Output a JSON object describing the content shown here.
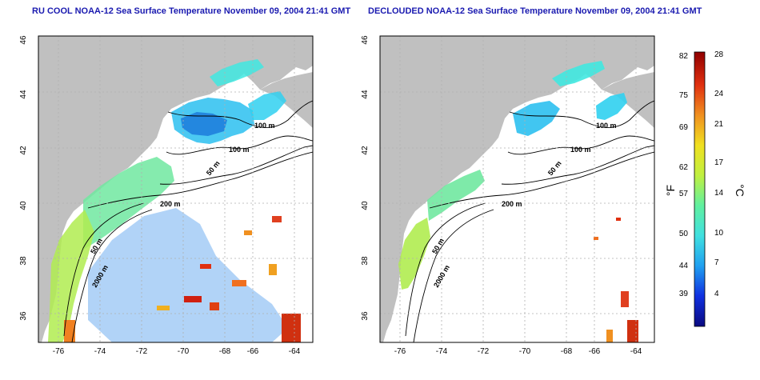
{
  "left_panel": {
    "title": "RU COOL NOAA-12 Sea Surface Temperature November 09, 2004 21:41 GMT",
    "x_ticks": [
      "-76",
      "-74",
      "-72",
      "-70",
      "-68",
      "-66",
      "-64"
    ],
    "y_ticks": [
      "46",
      "44",
      "42",
      "40",
      "38",
      "36"
    ],
    "contour_labels": [
      "100 m",
      "100 m",
      "50 m",
      "200 m",
      "50 m",
      "2000 m"
    ]
  },
  "right_panel": {
    "title": "DECLOUDED NOAA-12 Sea Surface Temperature November 09, 2004 21:41 GMT",
    "x_ticks": [
      "-76",
      "-74",
      "-72",
      "-70",
      "-68",
      "-66",
      "-64"
    ],
    "y_ticks": [
      "46",
      "44",
      "42",
      "40",
      "38",
      "36"
    ],
    "contour_labels": [
      "100 m",
      "100 m",
      "50 m",
      "200 m",
      "50 m",
      "2000 m"
    ]
  },
  "colorbar": {
    "fahrenheit_label": "°F",
    "celsius_label": "°C",
    "fahrenheit_ticks": [
      "82",
      "75",
      "69",
      "62",
      "57",
      "50",
      "44",
      "39"
    ],
    "celsius_ticks": [
      "28",
      "24",
      "21",
      "17",
      "14",
      "10",
      "7",
      "4"
    ],
    "celsius_range": [
      1,
      28
    ],
    "stops": [
      "#0a0a80",
      "#1030e0",
      "#20a0f0",
      "#40e0e0",
      "#60f0a0",
      "#c0f040",
      "#f0e020",
      "#f09020",
      "#e03010",
      "#900000"
    ]
  },
  "colors": {
    "land": "#c0c0c0",
    "ocean": "#ffffff",
    "title": "#1a1ab0",
    "contour": "#000000",
    "grid": "#b0b0b0"
  }
}
